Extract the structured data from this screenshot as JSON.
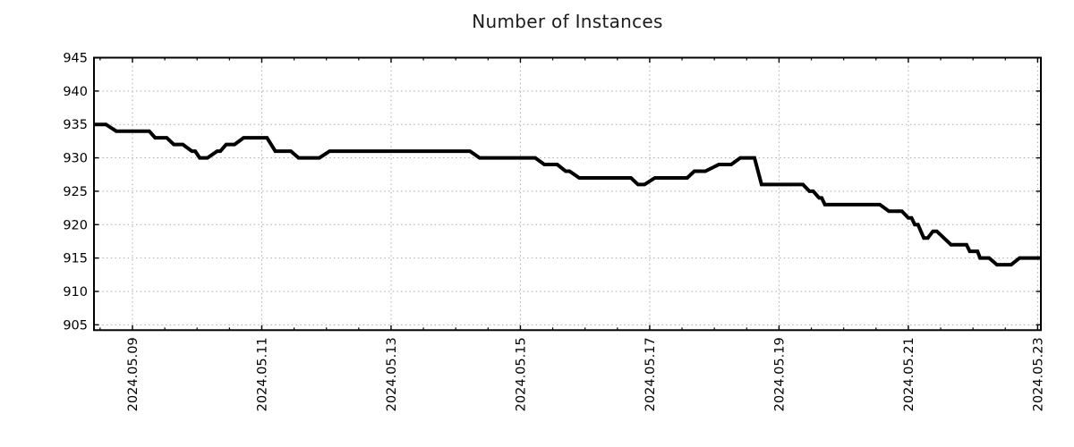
{
  "chart_data": {
    "type": "line",
    "title": "Number of Instances",
    "series_name": "Number of Instances",
    "line_color": "#000000",
    "background": "#ffffff",
    "grid_style": "dotted",
    "grid_color": "#ababab",
    "border_color": "#000000",
    "legend": "none",
    "x_axis": {
      "unit": "days since 2024-05-08 00:00",
      "range": [
        0.405,
        15.05
      ],
      "major_ticks": [
        1,
        3,
        5,
        7,
        9,
        11,
        13,
        15
      ],
      "major_tick_labels": [
        "2024.05.09",
        "2024.05.11",
        "2024.05.13",
        "2024.05.15",
        "2024.05.17",
        "2024.05.19",
        "2024.05.21",
        "2024.05.23"
      ],
      "minor_tick_step": 0.5,
      "label_rotation_deg": -90
    },
    "y_axis": {
      "range": [
        904.2,
        945
      ],
      "major_ticks": [
        905,
        910,
        915,
        920,
        925,
        930,
        935,
        940,
        945
      ],
      "major_tick_labels": [
        "905",
        "910",
        "915",
        "920",
        "925",
        "930",
        "935",
        "940",
        "945"
      ]
    },
    "points": [
      [
        0.4,
        935
      ],
      [
        0.59,
        935
      ],
      [
        0.75,
        934
      ],
      [
        1.26,
        934
      ],
      [
        1.35,
        933
      ],
      [
        1.53,
        933
      ],
      [
        1.64,
        932
      ],
      [
        1.78,
        932
      ],
      [
        1.92,
        931
      ],
      [
        1.97,
        931
      ],
      [
        2.04,
        930
      ],
      [
        2.16,
        930
      ],
      [
        2.31,
        931
      ],
      [
        2.36,
        931
      ],
      [
        2.45,
        932
      ],
      [
        2.58,
        932
      ],
      [
        2.72,
        933
      ],
      [
        3.08,
        933
      ],
      [
        3.21,
        931
      ],
      [
        3.45,
        931
      ],
      [
        3.57,
        930
      ],
      [
        3.89,
        930
      ],
      [
        4.05,
        931
      ],
      [
        6.22,
        931
      ],
      [
        6.37,
        930
      ],
      [
        7.23,
        930
      ],
      [
        7.37,
        929
      ],
      [
        7.57,
        929
      ],
      [
        7.7,
        928
      ],
      [
        7.76,
        928
      ],
      [
        7.91,
        927
      ],
      [
        8.71,
        927
      ],
      [
        8.82,
        926
      ],
      [
        8.92,
        926
      ],
      [
        9.08,
        927
      ],
      [
        9.58,
        927
      ],
      [
        9.69,
        928
      ],
      [
        9.86,
        928
      ],
      [
        10.07,
        929
      ],
      [
        10.26,
        929
      ],
      [
        10.4,
        930
      ],
      [
        10.62,
        930
      ],
      [
        10.73,
        926
      ],
      [
        11.37,
        926
      ],
      [
        11.47,
        925
      ],
      [
        11.53,
        925
      ],
      [
        11.62,
        924
      ],
      [
        11.66,
        924
      ],
      [
        11.71,
        923
      ],
      [
        12.56,
        923
      ],
      [
        12.7,
        922
      ],
      [
        12.9,
        922
      ],
      [
        13.0,
        921
      ],
      [
        13.05,
        921
      ],
      [
        13.1,
        920
      ],
      [
        13.15,
        920
      ],
      [
        13.24,
        918
      ],
      [
        13.3,
        918
      ],
      [
        13.38,
        919
      ],
      [
        13.44,
        919
      ],
      [
        13.66,
        917
      ],
      [
        13.9,
        917
      ],
      [
        13.95,
        916
      ],
      [
        14.07,
        916
      ],
      [
        14.11,
        915
      ],
      [
        14.25,
        915
      ],
      [
        14.37,
        914
      ],
      [
        14.59,
        914
      ],
      [
        14.72,
        915
      ],
      [
        15.05,
        915
      ]
    ]
  }
}
